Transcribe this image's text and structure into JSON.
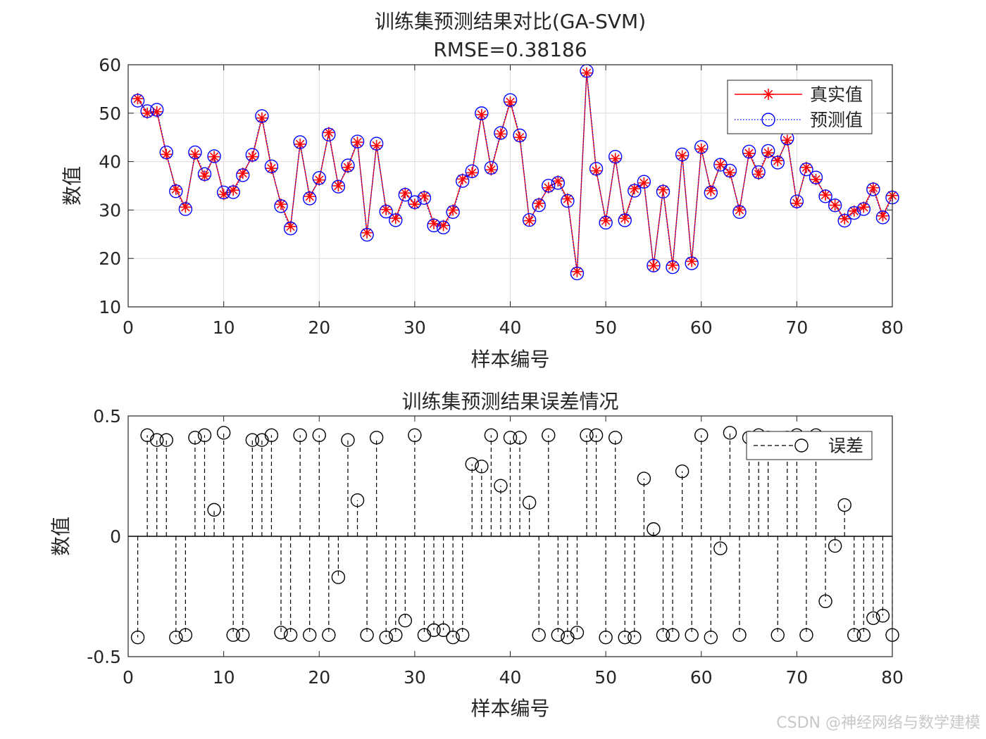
{
  "chart_data": [
    {
      "type": "line",
      "title": "训练集预测结果对比(GA-SVM)",
      "subtitle": "RMSE=0.38186",
      "xlabel": "样本编号",
      "ylabel": "数值",
      "xlim": [
        0,
        80
      ],
      "ylim": [
        10,
        60
      ],
      "xticks": [
        "0",
        "10",
        "20",
        "30",
        "40",
        "50",
        "60",
        "70",
        "80"
      ],
      "yticks": [
        "10",
        "20",
        "30",
        "40",
        "50",
        "60"
      ],
      "grid": true,
      "legend_position": "top-right",
      "x": [
        1,
        2,
        3,
        4,
        5,
        6,
        7,
        8,
        9,
        10,
        11,
        12,
        13,
        14,
        15,
        16,
        17,
        18,
        19,
        20,
        21,
        22,
        23,
        24,
        25,
        26,
        27,
        28,
        29,
        30,
        31,
        32,
        33,
        34,
        35,
        36,
        37,
        38,
        39,
        40,
        41,
        42,
        43,
        44,
        45,
        46,
        47,
        48,
        49,
        50,
        51,
        52,
        53,
        54,
        55,
        56,
        57,
        58,
        59,
        60,
        61,
        62,
        63,
        64,
        65,
        66,
        67,
        68,
        69,
        70,
        71,
        72,
        73,
        74,
        75,
        76,
        77,
        78,
        79,
        80
      ],
      "series": [
        {
          "name": "真实值",
          "color": "#ff0000",
          "marker": "asterisk",
          "values": [
            53.0,
            50.0,
            50.3,
            41.5,
            34.3,
            30.6,
            41.5,
            37.0,
            41.0,
            33.2,
            34.1,
            37.6,
            41.0,
            49.0,
            38.6,
            31.2,
            26.6,
            43.6,
            32.8,
            36.2,
            46.0,
            35.0,
            38.8,
            44.0,
            25.3,
            43.3,
            30.1,
            28.3,
            33.5,
            31.2,
            32.9,
            27.2,
            26.8,
            30.0,
            36.4,
            37.7,
            49.7,
            38.3,
            45.7,
            52.3,
            45.0,
            27.8,
            31.4,
            34.6,
            36.0,
            32.3,
            17.3,
            58.3,
            38.1,
            27.8,
            40.6,
            28.3,
            34.4,
            35.6,
            18.5,
            34.2,
            18.6,
            41.2,
            19.4,
            42.6,
            34.0,
            39.4,
            37.7,
            30.0,
            41.7,
            37.4,
            41.8,
            40.2,
            44.4,
            31.4,
            38.8,
            36.3,
            33.1,
            31.0,
            28.2,
            29.8,
            30.6,
            34.6,
            28.8,
            33.0
          ]
        },
        {
          "name": "预测值",
          "color": "#0000ff",
          "marker": "circle",
          "values": [
            52.58,
            50.42,
            50.7,
            41.9,
            33.88,
            30.19,
            41.91,
            37.42,
            41.11,
            33.63,
            33.69,
            37.19,
            41.4,
            49.4,
            39.02,
            30.8,
            26.19,
            44.02,
            32.39,
            36.62,
            45.59,
            34.83,
            39.2,
            44.15,
            24.89,
            43.71,
            29.68,
            27.89,
            33.15,
            31.62,
            32.49,
            26.81,
            26.39,
            29.58,
            35.99,
            38.0,
            49.99,
            38.72,
            45.91,
            52.71,
            45.41,
            27.94,
            30.99,
            35.02,
            35.59,
            31.88,
            16.9,
            58.72,
            38.52,
            27.38,
            41.01,
            27.88,
            33.98,
            35.84,
            18.53,
            33.79,
            18.19,
            41.47,
            18.99,
            43.02,
            33.58,
            39.35,
            38.13,
            29.59,
            42.07,
            37.81,
            42.21,
            39.79,
            44.81,
            31.78,
            38.39,
            36.72,
            32.83,
            30.96,
            27.8,
            29.4,
            30.2,
            34.27,
            28.47,
            32.59
          ]
        }
      ]
    },
    {
      "type": "stem",
      "title": "训练集预测结果误差情况",
      "xlabel": "样本编号",
      "ylabel": "数值",
      "xlim": [
        0,
        80
      ],
      "ylim": [
        -0.5,
        0.5
      ],
      "xticks": [
        "0",
        "10",
        "20",
        "30",
        "40",
        "50",
        "60",
        "70",
        "80"
      ],
      "yticks": [
        "-0.5",
        "0",
        "0.5"
      ],
      "grid": false,
      "legend_position": "top-right",
      "x": [
        1,
        2,
        3,
        4,
        5,
        6,
        7,
        8,
        9,
        10,
        11,
        12,
        13,
        14,
        15,
        16,
        17,
        18,
        19,
        20,
        21,
        22,
        23,
        24,
        25,
        26,
        27,
        28,
        29,
        30,
        31,
        32,
        33,
        34,
        35,
        36,
        37,
        38,
        39,
        40,
        41,
        42,
        43,
        44,
        45,
        46,
        47,
        48,
        49,
        50,
        51,
        52,
        53,
        54,
        55,
        56,
        57,
        58,
        59,
        60,
        61,
        62,
        63,
        64,
        65,
        66,
        67,
        68,
        69,
        70,
        71,
        72,
        73,
        74,
        75,
        76,
        77,
        78,
        79,
        80
      ],
      "series": [
        {
          "name": "误差",
          "color": "#000000",
          "marker": "circle",
          "values": [
            -0.42,
            0.42,
            0.4,
            0.4,
            -0.42,
            -0.41,
            0.41,
            0.42,
            0.11,
            0.43,
            -0.41,
            -0.41,
            0.4,
            0.4,
            0.42,
            -0.4,
            -0.41,
            0.42,
            -0.41,
            0.42,
            -0.41,
            -0.17,
            0.4,
            0.15,
            -0.41,
            0.41,
            -0.42,
            -0.41,
            -0.35,
            0.42,
            -0.41,
            -0.39,
            -0.39,
            -0.42,
            -0.41,
            0.3,
            0.29,
            0.42,
            0.21,
            0.41,
            0.41,
            0.14,
            -0.41,
            0.42,
            -0.41,
            -0.42,
            -0.4,
            0.42,
            0.42,
            -0.42,
            0.41,
            -0.42,
            -0.42,
            0.24,
            0.03,
            -0.41,
            -0.41,
            0.27,
            -0.41,
            0.42,
            -0.42,
            -0.05,
            0.43,
            -0.41,
            0.41,
            0.42,
            0.41,
            -0.41,
            0.41,
            0.42,
            -0.41,
            0.42,
            -0.27,
            -0.04,
            0.13,
            -0.41,
            -0.41,
            -0.34,
            -0.33,
            -0.41
          ]
        }
      ]
    }
  ],
  "watermark": "CSDN @神经网络与数学建模"
}
